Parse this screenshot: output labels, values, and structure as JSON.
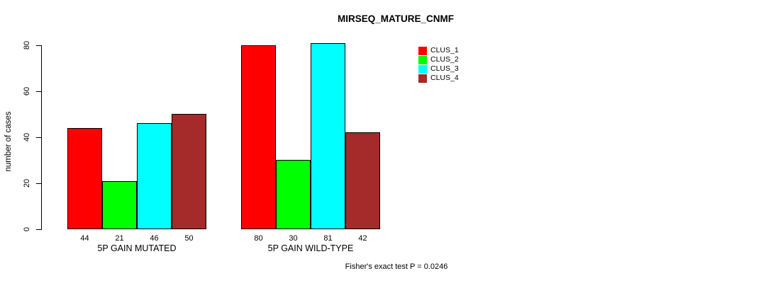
{
  "title": "MIRSEQ_MATURE_CNMF",
  "footnote": "Fisher's exact test P = 0.0246",
  "chart_data": {
    "type": "bar",
    "title": "MIRSEQ_MATURE_CNMF",
    "xlabel": "",
    "ylabel": "number of cases",
    "ylim": [
      0,
      80
    ],
    "yticks": [
      0,
      20,
      40,
      60,
      80
    ],
    "grid": false,
    "legend_position": "top-right",
    "categories": [
      "5P GAIN MUTATED",
      "5P GAIN WILD-TYPE"
    ],
    "series": [
      {
        "name": "CLUS_1",
        "color": "#FF0000",
        "values": [
          44,
          80
        ]
      },
      {
        "name": "CLUS_2",
        "color": "#00FF00",
        "values": [
          21,
          30
        ]
      },
      {
        "name": "CLUS_3",
        "color": "#00FFFF",
        "values": [
          46,
          81
        ]
      },
      {
        "name": "CLUS_4",
        "color": "#A52A2A",
        "values": [
          50,
          42
        ]
      }
    ],
    "bar_value_labels": true,
    "annotation": "Fisher's exact test P = 0.0246",
    "colors": {
      "background": "#FFFFFF",
      "axis": "#000000",
      "bar_border": "#000000",
      "text": "#000000"
    }
  }
}
